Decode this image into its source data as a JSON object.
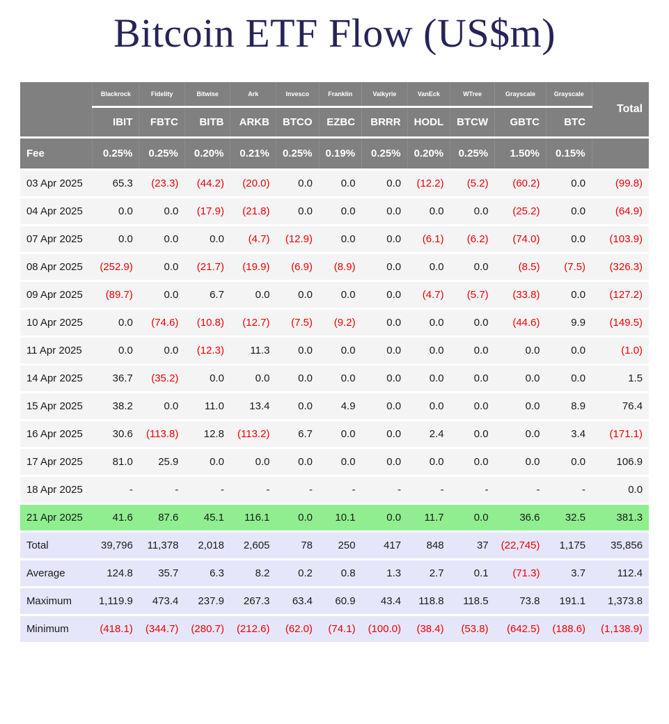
{
  "title": "Bitcoin ETF Flow (US$m)",
  "colors": {
    "title_text": "#262457",
    "header_bg": "#808080",
    "header_text": "#ffffff",
    "negative_value": "#ee0000",
    "positive_value": "#1a1a1a",
    "highlight_row_bg": "#90ee90",
    "summary_row_bg": "#e6e6fa",
    "data_row_bg": "#f4f4f4"
  },
  "chart_data": {
    "type": "table",
    "title": "Bitcoin ETF Flow (US$m)",
    "header": {
      "providers": [
        "Blackrock",
        "Fidelity",
        "Bitwise",
        "Ark",
        "Invesco",
        "Franklin",
        "Valkyrie",
        "VanEck",
        "WTree",
        "Grayscale",
        "Grayscale"
      ],
      "tickers": [
        "IBIT",
        "FBTC",
        "BITB",
        "ARKB",
        "BTCO",
        "EZBC",
        "BRRR",
        "HODL",
        "BTCW",
        "GBTC",
        "BTC"
      ],
      "total_label": "Total",
      "fee_label": "Fee",
      "fees": [
        "0.25%",
        "0.25%",
        "0.20%",
        "0.21%",
        "0.25%",
        "0.19%",
        "0.25%",
        "0.20%",
        "0.25%",
        "1.50%",
        "0.15%"
      ]
    },
    "rows": [
      {
        "date": "03 Apr 2025",
        "highlight": false,
        "values": [
          "65.3",
          "(23.3)",
          "(44.2)",
          "(20.0)",
          "0.0",
          "0.0",
          "0.0",
          "(12.2)",
          "(5.2)",
          "(60.2)",
          "0.0",
          "(99.8)"
        ]
      },
      {
        "date": "04 Apr 2025",
        "highlight": false,
        "values": [
          "0.0",
          "0.0",
          "(17.9)",
          "(21.8)",
          "0.0",
          "0.0",
          "0.0",
          "0.0",
          "0.0",
          "(25.2)",
          "0.0",
          "(64.9)"
        ]
      },
      {
        "date": "07 Apr 2025",
        "highlight": false,
        "values": [
          "0.0",
          "0.0",
          "0.0",
          "(4.7)",
          "(12.9)",
          "0.0",
          "0.0",
          "(6.1)",
          "(6.2)",
          "(74.0)",
          "0.0",
          "(103.9)"
        ]
      },
      {
        "date": "08 Apr 2025",
        "highlight": false,
        "values": [
          "(252.9)",
          "0.0",
          "(21.7)",
          "(19.9)",
          "(6.9)",
          "(8.9)",
          "0.0",
          "0.0",
          "0.0",
          "(8.5)",
          "(7.5)",
          "(326.3)"
        ]
      },
      {
        "date": "09 Apr 2025",
        "highlight": false,
        "values": [
          "(89.7)",
          "0.0",
          "6.7",
          "0.0",
          "0.0",
          "0.0",
          "0.0",
          "(4.7)",
          "(5.7)",
          "(33.8)",
          "0.0",
          "(127.2)"
        ]
      },
      {
        "date": "10 Apr 2025",
        "highlight": false,
        "values": [
          "0.0",
          "(74.6)",
          "(10.8)",
          "(12.7)",
          "(7.5)",
          "(9.2)",
          "0.0",
          "0.0",
          "0.0",
          "(44.6)",
          "9.9",
          "(149.5)"
        ]
      },
      {
        "date": "11 Apr 2025",
        "highlight": false,
        "values": [
          "0.0",
          "0.0",
          "(12.3)",
          "11.3",
          "0.0",
          "0.0",
          "0.0",
          "0.0",
          "0.0",
          "0.0",
          "0.0",
          "(1.0)"
        ]
      },
      {
        "date": "14 Apr 2025",
        "highlight": false,
        "values": [
          "36.7",
          "(35.2)",
          "0.0",
          "0.0",
          "0.0",
          "0.0",
          "0.0",
          "0.0",
          "0.0",
          "0.0",
          "0.0",
          "1.5"
        ]
      },
      {
        "date": "15 Apr 2025",
        "highlight": false,
        "values": [
          "38.2",
          "0.0",
          "11.0",
          "13.4",
          "0.0",
          "4.9",
          "0.0",
          "0.0",
          "0.0",
          "0.0",
          "8.9",
          "76.4"
        ]
      },
      {
        "date": "16 Apr 2025",
        "highlight": false,
        "values": [
          "30.6",
          "(113.8)",
          "12.8",
          "(113.2)",
          "6.7",
          "0.0",
          "0.0",
          "2.4",
          "0.0",
          "0.0",
          "3.4",
          "(171.1)"
        ]
      },
      {
        "date": "17 Apr 2025",
        "highlight": false,
        "values": [
          "81.0",
          "25.9",
          "0.0",
          "0.0",
          "0.0",
          "0.0",
          "0.0",
          "0.0",
          "0.0",
          "0.0",
          "0.0",
          "106.9"
        ]
      },
      {
        "date": "18 Apr 2025",
        "highlight": false,
        "values": [
          "-",
          "-",
          "-",
          "-",
          "-",
          "-",
          "-",
          "-",
          "-",
          "-",
          "-",
          "0.0"
        ]
      },
      {
        "date": "21 Apr 2025",
        "highlight": true,
        "values": [
          "41.6",
          "87.6",
          "45.1",
          "116.1",
          "0.0",
          "10.1",
          "0.0",
          "11.7",
          "0.0",
          "36.6",
          "32.5",
          "381.3"
        ]
      }
    ],
    "summary_rows": [
      {
        "label": "Total",
        "values": [
          "39,796",
          "11,378",
          "2,018",
          "2,605",
          "78",
          "250",
          "417",
          "848",
          "37",
          "(22,745)",
          "1,175",
          "35,856"
        ]
      },
      {
        "label": "Average",
        "values": [
          "124.8",
          "35.7",
          "6.3",
          "8.2",
          "0.2",
          "0.8",
          "1.3",
          "2.7",
          "0.1",
          "(71.3)",
          "3.7",
          "112.4"
        ]
      },
      {
        "label": "Maximum",
        "values": [
          "1,119.9",
          "473.4",
          "237.9",
          "267.3",
          "63.4",
          "60.9",
          "43.4",
          "118.8",
          "118.5",
          "73.8",
          "191.1",
          "1,373.8"
        ]
      },
      {
        "label": "Minimum",
        "values": [
          "(418.1)",
          "(344.7)",
          "(280.7)",
          "(212.6)",
          "(62.0)",
          "(74.1)",
          "(100.0)",
          "(38.4)",
          "(53.8)",
          "(642.5)",
          "(188.6)",
          "(1,138.9)"
        ]
      }
    ]
  }
}
